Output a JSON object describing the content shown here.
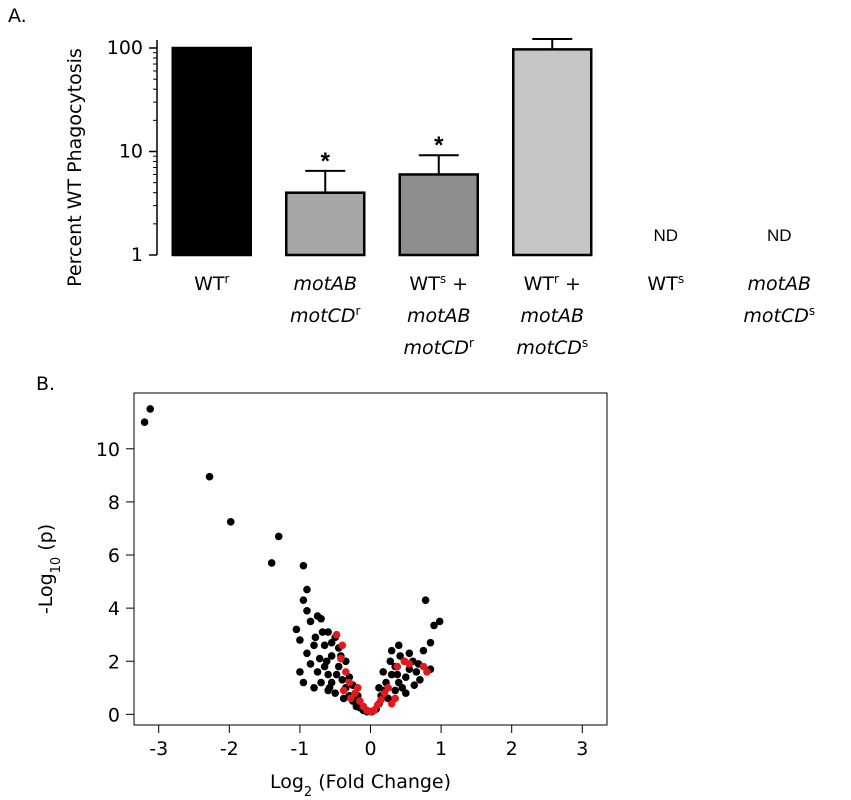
{
  "panels": {
    "a_label": "A.",
    "b_label": "B."
  },
  "chart_data": [
    {
      "type": "bar",
      "title": "",
      "ylabel": "Percent WT Phagocytosis",
      "yscale": "log",
      "ylim": [
        1,
        130
      ],
      "y_ticks": [
        "1",
        "10",
        "100"
      ],
      "categories": [
        [
          {
            "t": "WT"
          },
          {
            "t": "r",
            "sup": true
          }
        ],
        [
          {
            "t": "motAB",
            "it": true
          }
        ],
        [
          {
            "t": "WT"
          },
          {
            "t": "s",
            "sup": true
          },
          {
            "t": " +"
          }
        ],
        [
          {
            "t": "WT"
          },
          {
            "t": "r",
            "sup": true
          },
          {
            "t": " +"
          }
        ],
        [
          {
            "t": "WT"
          },
          {
            "t": "s",
            "sup": true
          }
        ],
        [
          {
            "t": "motAB",
            "it": true
          }
        ]
      ],
      "category_line2": [
        [],
        [
          {
            "t": "motCD",
            "it": true
          },
          {
            "t": "r",
            "sup": true
          }
        ],
        [
          {
            "t": "motAB",
            "it": true
          }
        ],
        [
          {
            "t": "motAB",
            "it": true
          }
        ],
        [],
        [
          {
            "t": "motCD",
            "it": true
          },
          {
            "t": "s",
            "sup": true
          }
        ]
      ],
      "category_line3": [
        [],
        [],
        [
          {
            "t": "motCD",
            "it": true
          },
          {
            "t": "r",
            "sup": true
          }
        ],
        [
          {
            "t": "motCD",
            "it": true
          },
          {
            "t": "s",
            "sup": true
          }
        ],
        [],
        []
      ],
      "values": [
        100,
        4.0,
        6.0,
        97,
        null,
        null
      ],
      "error_upper": [
        null,
        6.5,
        9.2,
        122,
        null,
        null
      ],
      "fills": [
        "#000000",
        "#a6a6a6",
        "#8e8e8e",
        "#c6c6c6",
        "none",
        "none"
      ],
      "annotations": [
        "",
        "*",
        "*",
        "",
        "ND",
        "ND"
      ]
    },
    {
      "type": "scatter",
      "title": "",
      "xlabel": "Log",
      "xlabel_sub": "2",
      "xlabel_rest": " (Fold Change)",
      "ylabel": "-Log",
      "ylabel_sub": "10",
      "ylabel_rest": " (p)",
      "xlim": [
        -3.35,
        3.35
      ],
      "ylim": [
        -0.4,
        12.1
      ],
      "x_ticks": [
        "-3",
        "-2",
        "-1",
        "0",
        "1",
        "2",
        "3"
      ],
      "y_ticks": [
        "0",
        "2",
        "4",
        "6",
        "8",
        "10"
      ],
      "grid": false,
      "series": [
        {
          "color": "#000000",
          "points": [
            [
              -3.12,
              11.5
            ],
            [
              -3.2,
              11.0
            ],
            [
              -2.28,
              8.95
            ],
            [
              -1.98,
              7.25
            ],
            [
              -1.3,
              6.7
            ],
            [
              -1.4,
              5.7
            ],
            [
              -0.95,
              5.6
            ],
            [
              -0.9,
              4.7
            ],
            [
              -0.95,
              4.3
            ],
            [
              -1.05,
              3.2
            ],
            [
              -0.9,
              3.9
            ],
            [
              -0.85,
              3.5
            ],
            [
              -0.75,
              3.7
            ],
            [
              -0.7,
              3.6
            ],
            [
              -1.0,
              2.8
            ],
            [
              -0.9,
              2.3
            ],
            [
              -0.6,
              3.1
            ],
            [
              -0.65,
              2.6
            ],
            [
              -0.55,
              2.2
            ],
            [
              -0.8,
              2.6
            ],
            [
              -0.72,
              2.1
            ],
            [
              -0.85,
              1.9
            ],
            [
              -1.0,
              1.6
            ],
            [
              -0.95,
              1.2
            ],
            [
              -0.6,
              1.5
            ],
            [
              -0.55,
              1.2
            ],
            [
              -0.45,
              1.8
            ],
            [
              -0.4,
              1.3
            ],
            [
              -0.35,
              1.0
            ],
            [
              -0.3,
              0.7
            ],
            [
              -0.25,
              0.5
            ],
            [
              -0.2,
              0.3
            ],
            [
              -0.5,
              0.8
            ],
            [
              -0.6,
              0.9
            ],
            [
              -0.7,
              1.2
            ],
            [
              -0.75,
              1.6
            ],
            [
              -0.8,
              1.0
            ],
            [
              -0.45,
              2.5
            ],
            [
              -0.5,
              2.9
            ],
            [
              -0.65,
              1.8
            ],
            [
              -0.58,
              1.0
            ],
            [
              -0.38,
              0.6
            ],
            [
              -0.15,
              0.25
            ],
            [
              -0.1,
              0.15
            ],
            [
              -0.05,
              0.1
            ],
            [
              0.02,
              0.1
            ],
            [
              0.08,
              0.2
            ],
            [
              0.12,
              0.4
            ],
            [
              0.15,
              0.7
            ],
            [
              0.2,
              0.9
            ],
            [
              0.22,
              1.2
            ],
            [
              0.3,
              1.5
            ],
            [
              0.35,
              1.8
            ],
            [
              0.4,
              1.2
            ],
            [
              0.45,
              1.0
            ],
            [
              0.5,
              1.4
            ],
            [
              0.55,
              1.7
            ],
            [
              0.6,
              2.0
            ],
            [
              0.65,
              1.6
            ],
            [
              0.7,
              1.3
            ],
            [
              0.3,
              2.4
            ],
            [
              0.4,
              2.6
            ],
            [
              0.42,
              2.2
            ],
            [
              0.35,
              0.9
            ],
            [
              0.25,
              0.6
            ],
            [
              0.55,
              2.3
            ],
            [
              0.5,
              0.8
            ],
            [
              0.62,
              1.1
            ],
            [
              0.48,
              2.0
            ],
            [
              0.38,
              1.5
            ],
            [
              0.78,
              4.3
            ],
            [
              0.98,
              3.5
            ],
            [
              0.9,
              3.35
            ],
            [
              0.85,
              2.7
            ],
            [
              0.75,
              2.4
            ],
            [
              0.85,
              1.7
            ],
            [
              0.68,
              1.9
            ],
            [
              0.28,
              2.0
            ],
            [
              0.18,
              1.6
            ],
            [
              0.12,
              1.0
            ],
            [
              -0.3,
              1.4
            ],
            [
              -0.35,
              2.0
            ],
            [
              -0.42,
              2.2
            ],
            [
              -0.25,
              1.1
            ],
            [
              -0.18,
              0.7
            ],
            [
              -0.68,
              3.1
            ],
            [
              -0.78,
              2.9
            ],
            [
              -0.55,
              2.7
            ],
            [
              -0.62,
              2.0
            ],
            [
              -0.48,
              1.5
            ]
          ]
        },
        {
          "color": "#e31a1c",
          "points": [
            [
              -0.48,
              3.0
            ],
            [
              -0.4,
              2.6
            ],
            [
              -0.42,
              2.1
            ],
            [
              -0.35,
              1.6
            ],
            [
              -0.3,
              1.2
            ],
            [
              -0.22,
              0.8
            ],
            [
              -0.15,
              0.5
            ],
            [
              -0.1,
              0.3
            ],
            [
              -0.05,
              0.15
            ],
            [
              0.0,
              0.1
            ],
            [
              0.05,
              0.15
            ],
            [
              0.1,
              0.35
            ],
            [
              0.15,
              0.55
            ],
            [
              0.2,
              0.8
            ],
            [
              0.3,
              0.4
            ],
            [
              0.38,
              1.8
            ],
            [
              0.48,
              2.0
            ],
            [
              0.55,
              1.9
            ],
            [
              0.75,
              1.8
            ],
            [
              0.8,
              1.6
            ],
            [
              -0.28,
              0.6
            ],
            [
              -0.18,
              1.0
            ],
            [
              0.25,
              1.0
            ],
            [
              0.35,
              0.6
            ],
            [
              -0.38,
              0.9
            ]
          ]
        }
      ]
    }
  ]
}
